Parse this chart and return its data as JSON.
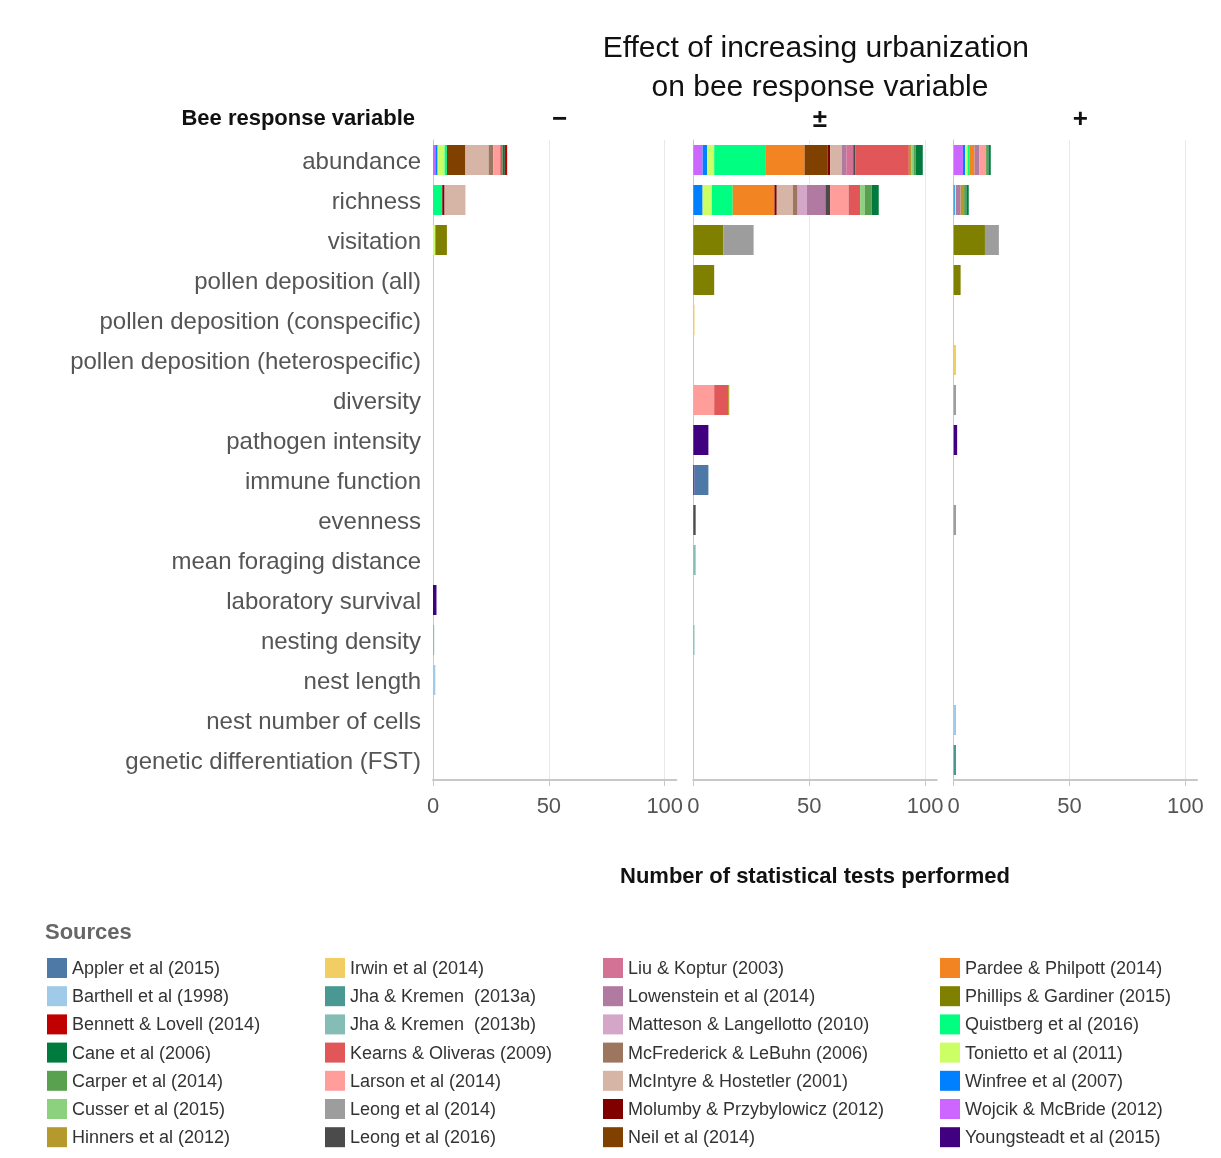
{
  "chart_data": [
    {
      "type": "bar",
      "orientation": "horizontal",
      "stacked": true,
      "subtitle": "−",
      "ylabel": "Bee response variable",
      "legend_title": "Sources",
      "legend": "bottom",
      "grid": "x",
      "categories": [
        "abundance",
        "richness",
        "visitation",
        "pollen deposition (all)",
        "pollen deposition (conspecific)",
        "pollen deposition (heterospecific)",
        "diversity",
        "pathogen intensity",
        "immune function",
        "evenness",
        "mean foraging distance",
        "laboratory survival",
        "nesting density",
        "nest length",
        "nest number of cells",
        "genetic differentiation (FST)"
      ],
      "xlim": [
        0,
        105
      ],
      "xticks": [
        0,
        50,
        100
      ],
      "series": [
        {
          "name": "Youngsteadt et al (2015)",
          "color": "#400080",
          "values": [
            null,
            null,
            null,
            null,
            null,
            null,
            null,
            null,
            null,
            null,
            null,
            1.5,
            null,
            null,
            null,
            null
          ]
        },
        {
          "name": "Wojcik & McBride (2012)",
          "color": "#cc66ff",
          "values": [
            1,
            null,
            null,
            null,
            null,
            null,
            null,
            null,
            null,
            null,
            null,
            null,
            null,
            null,
            null,
            null
          ]
        },
        {
          "name": "Winfree et al (2007)",
          "color": "#0080ff",
          "values": [
            1,
            null,
            null,
            null,
            null,
            null,
            null,
            null,
            null,
            null,
            null,
            null,
            null,
            null,
            null,
            null
          ]
        },
        {
          "name": "Tonietto et al (2011)",
          "color": "#ccff66",
          "values": [
            3,
            null,
            1,
            null,
            null,
            null,
            null,
            null,
            null,
            null,
            null,
            null,
            null,
            null,
            null,
            null
          ]
        },
        {
          "name": "Quistberg et al (2016)",
          "color": "#00ff80",
          "values": [
            1,
            4,
            null,
            null,
            null,
            null,
            null,
            null,
            null,
            null,
            null,
            null,
            null,
            null,
            null,
            null
          ]
        },
        {
          "name": "Phillips & Gardiner (2015)",
          "color": "#808000",
          "values": [
            null,
            null,
            5,
            null,
            null,
            null,
            null,
            null,
            null,
            null,
            null,
            null,
            null,
            null,
            null,
            null
          ]
        },
        {
          "name": "Pardee & Philpott (2014)",
          "color": "#f28522",
          "values": [
            null,
            null,
            null,
            null,
            null,
            null,
            null,
            null,
            null,
            null,
            null,
            null,
            null,
            null,
            null,
            null
          ]
        },
        {
          "name": "Neil et al (2014)",
          "color": "#804000",
          "values": [
            8,
            null,
            null,
            null,
            null,
            null,
            null,
            null,
            null,
            null,
            null,
            null,
            null,
            null,
            null,
            null
          ]
        },
        {
          "name": "Molumby & Przybylowicz (2012)",
          "color": "#800000",
          "values": [
            null,
            1,
            null,
            null,
            null,
            null,
            null,
            null,
            null,
            null,
            null,
            null,
            null,
            null,
            null,
            null
          ]
        },
        {
          "name": "McIntyre & Hostetler (2001)",
          "color": "#d7b5a6",
          "values": [
            10,
            9,
            null,
            null,
            null,
            null,
            null,
            null,
            null,
            null,
            null,
            null,
            null,
            null,
            null,
            null
          ]
        },
        {
          "name": "McFrederick & LeBuhn (2006)",
          "color": "#9d7660",
          "values": [
            2,
            null,
            null,
            null,
            null,
            null,
            null,
            null,
            null,
            null,
            null,
            null,
            null,
            null,
            null,
            null
          ]
        },
        {
          "name": "Matteson & Langellotto (2010)",
          "color": "#d4a6c8",
          "values": [
            null,
            null,
            null,
            null,
            null,
            null,
            null,
            null,
            null,
            null,
            null,
            null,
            null,
            null,
            null,
            null
          ]
        },
        {
          "name": "Lowenstein et al (2014)",
          "color": "#b07aa1",
          "values": [
            null,
            null,
            null,
            null,
            null,
            null,
            null,
            null,
            null,
            null,
            null,
            null,
            null,
            null,
            null,
            null
          ]
        },
        {
          "name": "Liu & Koptur (2003)",
          "color": "#d37295",
          "values": [
            null,
            null,
            null,
            null,
            null,
            null,
            null,
            null,
            null,
            null,
            null,
            null,
            null,
            null,
            null,
            null
          ]
        },
        {
          "name": "Leong et al (2016)",
          "color": "#4b4b4b",
          "values": [
            null,
            null,
            null,
            null,
            null,
            null,
            null,
            null,
            null,
            null,
            null,
            null,
            null,
            null,
            null,
            null
          ]
        },
        {
          "name": "Leong et al (2014)",
          "color": "#9d9d9d",
          "values": [
            null,
            null,
            null,
            null,
            null,
            null,
            null,
            null,
            null,
            null,
            null,
            null,
            null,
            null,
            null,
            null
          ]
        },
        {
          "name": "Larson et al (2014)",
          "color": "#ff9d9a",
          "values": [
            3,
            null,
            null,
            null,
            null,
            null,
            null,
            null,
            null,
            null,
            null,
            null,
            null,
            null,
            null,
            null
          ]
        },
        {
          "name": "Kearns & Oliveras (2009)",
          "color": "#e15759",
          "values": [
            1,
            null,
            null,
            null,
            null,
            null,
            null,
            null,
            null,
            null,
            null,
            null,
            null,
            null,
            null,
            null
          ]
        },
        {
          "name": "Jha & Kremen  (2013b)",
          "color": "#86bcb6",
          "values": [
            null,
            null,
            null,
            null,
            null,
            null,
            null,
            null,
            null,
            null,
            null,
            null,
            0.5,
            null,
            null,
            null
          ]
        },
        {
          "name": "Jha & Kremen  (2013a)",
          "color": "#499894",
          "values": [
            null,
            null,
            null,
            null,
            null,
            null,
            null,
            null,
            null,
            null,
            null,
            null,
            null,
            null,
            null,
            null
          ]
        },
        {
          "name": "Irwin et al (2014)",
          "color": "#f1ce63",
          "values": [
            null,
            null,
            null,
            null,
            null,
            null,
            null,
            null,
            null,
            null,
            null,
            null,
            null,
            null,
            null,
            null
          ]
        },
        {
          "name": "Hinners et al (2012)",
          "color": "#b6992d",
          "values": [
            null,
            null,
            null,
            null,
            null,
            null,
            null,
            null,
            null,
            null,
            null,
            null,
            null,
            null,
            null,
            null
          ]
        },
        {
          "name": "Cusser et al (2015)",
          "color": "#8cd17d",
          "values": [
            null,
            null,
            null,
            null,
            null,
            null,
            null,
            null,
            null,
            null,
            null,
            null,
            null,
            null,
            null,
            null
          ]
        },
        {
          "name": "Carper et al (2014)",
          "color": "#59a14f",
          "values": [
            null,
            null,
            null,
            null,
            null,
            null,
            null,
            null,
            null,
            null,
            null,
            null,
            null,
            null,
            null,
            null
          ]
        },
        {
          "name": "Cane et al (2006)",
          "color": "#007a3d",
          "values": [
            1,
            null,
            null,
            null,
            null,
            null,
            null,
            null,
            null,
            null,
            null,
            null,
            null,
            null,
            null,
            null
          ]
        },
        {
          "name": "Bennett & Lovell (2014)",
          "color": "#c00000",
          "values": [
            1,
            null,
            null,
            null,
            null,
            null,
            null,
            null,
            null,
            null,
            null,
            null,
            null,
            null,
            null,
            null
          ]
        },
        {
          "name": "Barthell et al (1998)",
          "color": "#a0cbe8",
          "values": [
            null,
            null,
            null,
            null,
            null,
            null,
            null,
            null,
            null,
            null,
            null,
            null,
            null,
            1,
            null,
            null
          ]
        },
        {
          "name": "Appler et al (2015)",
          "color": "#4e79a7",
          "values": [
            null,
            null,
            null,
            null,
            null,
            null,
            null,
            null,
            null,
            null,
            null,
            null,
            null,
            null,
            null,
            null
          ]
        }
      ]
    },
    {
      "type": "bar",
      "orientation": "horizontal",
      "stacked": true,
      "title": "Effect of increasing urbanization on bee response variable",
      "subtitle": "±",
      "xlabel": "Number of statistical tests performed",
      "grid": "x",
      "tick_labels": "x",
      "xlim": [
        0,
        105
      ],
      "xticks": [
        0,
        50,
        100
      ],
      "series": [
        {
          "color": "#400080",
          "values": [
            null,
            null,
            null,
            null,
            null,
            null,
            null,
            6.5,
            0.5,
            null,
            null,
            null,
            null,
            null,
            null,
            null
          ]
        },
        {
          "color": "#cc66ff",
          "values": [
            4,
            null,
            null,
            null,
            null,
            null,
            null,
            null,
            null,
            null,
            null,
            null,
            null,
            null,
            null,
            null
          ]
        },
        {
          "color": "#0080ff",
          "values": [
            2,
            4,
            null,
            null,
            null,
            null,
            null,
            null,
            null,
            null,
            null,
            null,
            null,
            null,
            null,
            null
          ]
        },
        {
          "color": "#ccff66",
          "values": [
            3,
            4,
            null,
            null,
            null,
            null,
            null,
            null,
            null,
            null,
            null,
            null,
            null,
            null,
            null,
            null
          ]
        },
        {
          "color": "#00ff80",
          "values": [
            22,
            9,
            null,
            null,
            null,
            null,
            null,
            null,
            null,
            null,
            null,
            null,
            null,
            null,
            null,
            null
          ]
        },
        {
          "color": "#808000",
          "values": [
            null,
            null,
            13,
            9,
            null,
            null,
            null,
            null,
            null,
            null,
            null,
            null,
            null,
            null,
            null,
            null
          ]
        },
        {
          "color": "#f28522",
          "values": [
            17,
            18,
            null,
            null,
            null,
            null,
            null,
            null,
            null,
            null,
            null,
            null,
            null,
            null,
            null,
            null
          ]
        },
        {
          "color": "#804000",
          "values": [
            10,
            null,
            null,
            null,
            null,
            null,
            null,
            null,
            null,
            null,
            null,
            null,
            null,
            null,
            null,
            null
          ]
        },
        {
          "color": "#800000",
          "values": [
            1,
            1,
            null,
            null,
            null,
            null,
            null,
            null,
            null,
            null,
            null,
            null,
            null,
            null,
            null,
            null
          ]
        },
        {
          "color": "#d7b5a6",
          "values": [
            5,
            7,
            null,
            null,
            null,
            null,
            null,
            null,
            null,
            null,
            null,
            null,
            null,
            null,
            null,
            null
          ]
        },
        {
          "color": "#9d7660",
          "values": [
            null,
            2,
            null,
            null,
            null,
            null,
            null,
            null,
            null,
            null,
            null,
            null,
            null,
            null,
            null,
            null
          ]
        },
        {
          "color": "#d4a6c8",
          "values": [
            null,
            4,
            null,
            null,
            null,
            null,
            null,
            null,
            null,
            null,
            null,
            null,
            null,
            null,
            null,
            null
          ]
        },
        {
          "color": "#b07aa1",
          "values": [
            2,
            8,
            null,
            null,
            null,
            null,
            null,
            null,
            null,
            null,
            null,
            null,
            null,
            null,
            null,
            null
          ]
        },
        {
          "color": "#d37295",
          "values": [
            3,
            null,
            null,
            null,
            null,
            null,
            null,
            null,
            null,
            null,
            null,
            null,
            null,
            null,
            null,
            null
          ]
        },
        {
          "color": "#4b4b4b",
          "values": [
            1,
            2,
            null,
            null,
            null,
            null,
            null,
            null,
            null,
            1,
            null,
            null,
            null,
            null,
            null,
            null
          ]
        },
        {
          "color": "#9d9d9d",
          "values": [
            null,
            null,
            13,
            null,
            null,
            null,
            null,
            null,
            null,
            null,
            null,
            null,
            null,
            null,
            null,
            null
          ]
        },
        {
          "color": "#ff9d9a",
          "values": [
            null,
            8,
            null,
            null,
            null,
            null,
            9,
            null,
            null,
            null,
            null,
            null,
            null,
            null,
            null,
            null
          ]
        },
        {
          "color": "#e15759",
          "values": [
            23,
            5,
            null,
            null,
            null,
            null,
            6,
            null,
            null,
            null,
            null,
            null,
            null,
            null,
            null,
            null
          ]
        },
        {
          "color": "#86bcb6",
          "values": [
            null,
            null,
            null,
            null,
            null,
            null,
            null,
            null,
            null,
            null,
            1,
            null,
            0.5,
            null,
            null,
            null
          ]
        },
        {
          "color": "#f1ce63",
          "values": [
            null,
            null,
            null,
            null,
            0.5,
            null,
            null,
            null,
            null,
            null,
            null,
            null,
            null,
            null,
            null,
            null
          ]
        },
        {
          "color": "#b6992d",
          "values": [
            1,
            null,
            null,
            null,
            null,
            null,
            0.5,
            null,
            null,
            null,
            null,
            null,
            null,
            null,
            null,
            null
          ]
        },
        {
          "color": "#8cd17d",
          "values": [
            1,
            2,
            null,
            null,
            null,
            null,
            null,
            null,
            null,
            null,
            null,
            null,
            null,
            null,
            null,
            null
          ]
        },
        {
          "color": "#59a14f",
          "values": [
            1,
            3,
            null,
            null,
            null,
            null,
            null,
            null,
            null,
            null,
            null,
            null,
            null,
            null,
            null,
            null
          ]
        },
        {
          "color": "#007a3d",
          "values": [
            3,
            3,
            null,
            null,
            null,
            null,
            null,
            null,
            null,
            null,
            null,
            null,
            null,
            null,
            null,
            null
          ]
        },
        {
          "color": "#4e79a7",
          "values": [
            null,
            null,
            null,
            null,
            null,
            null,
            null,
            null,
            6,
            null,
            null,
            null,
            null,
            null,
            null,
            null
          ]
        }
      ]
    },
    {
      "type": "bar",
      "orientation": "horizontal",
      "stacked": true,
      "subtitle": "+",
      "grid": "x",
      "tick_labels": "x",
      "xlim": [
        0,
        105
      ],
      "xticks": [
        0,
        50,
        100
      ],
      "series": [
        {
          "color": "#400080",
          "values": [
            null,
            null,
            null,
            null,
            null,
            null,
            null,
            1.5,
            null,
            null,
            null,
            null,
            null,
            null,
            null,
            null
          ]
        },
        {
          "color": "#cc66ff",
          "values": [
            4,
            null,
            null,
            null,
            null,
            null,
            null,
            null,
            null,
            null,
            null,
            null,
            null,
            null,
            null,
            null
          ]
        },
        {
          "color": "#0080ff",
          "values": [
            1,
            0.5,
            null,
            null,
            null,
            null,
            null,
            null,
            null,
            null,
            null,
            null,
            null,
            null,
            null,
            null
          ]
        },
        {
          "color": "#ccff66",
          "values": [
            1,
            0.5,
            null,
            null,
            null,
            null,
            null,
            null,
            null,
            null,
            null,
            null,
            null,
            null,
            null,
            null
          ]
        },
        {
          "color": "#00ff80",
          "values": [
            1,
            null,
            null,
            null,
            null,
            null,
            null,
            null,
            null,
            null,
            null,
            null,
            null,
            null,
            null,
            null
          ]
        },
        {
          "color": "#808000",
          "values": [
            null,
            null,
            13.5,
            3,
            null,
            null,
            null,
            null,
            null,
            null,
            null,
            null,
            null,
            null,
            null,
            null
          ]
        },
        {
          "color": "#f28522",
          "values": [
            2,
            null,
            null,
            null,
            null,
            null,
            null,
            null,
            null,
            null,
            null,
            null,
            null,
            null,
            null,
            null
          ]
        },
        {
          "color": "#b07aa1",
          "values": [
            2,
            2,
            null,
            null,
            null,
            null,
            null,
            null,
            null,
            null,
            null,
            null,
            null,
            null,
            null,
            null
          ]
        },
        {
          "color": "#9d9d9d",
          "values": [
            null,
            null,
            6,
            null,
            null,
            null,
            1,
            null,
            null,
            1,
            null,
            null,
            null,
            null,
            null,
            null
          ]
        },
        {
          "color": "#ff9d9a",
          "values": [
            3,
            null,
            null,
            null,
            null,
            null,
            null,
            null,
            null,
            null,
            null,
            null,
            null,
            null,
            null,
            null
          ]
        },
        {
          "color": "#499894",
          "values": [
            null,
            null,
            null,
            null,
            null,
            null,
            null,
            null,
            null,
            null,
            null,
            null,
            null,
            null,
            null,
            1
          ]
        },
        {
          "color": "#f1ce63",
          "values": [
            null,
            null,
            null,
            null,
            null,
            1,
            null,
            null,
            null,
            null,
            null,
            null,
            null,
            null,
            null,
            null
          ]
        },
        {
          "color": "#b6992d",
          "values": [
            null,
            1.5,
            null,
            null,
            null,
            null,
            null,
            null,
            null,
            null,
            null,
            null,
            null,
            null,
            null,
            null
          ]
        },
        {
          "color": "#59a14f",
          "values": [
            1,
            1,
            null,
            null,
            null,
            null,
            null,
            null,
            null,
            null,
            null,
            null,
            null,
            null,
            null,
            null
          ]
        },
        {
          "color": "#007a3d",
          "values": [
            1,
            1,
            null,
            null,
            null,
            null,
            null,
            null,
            null,
            null,
            null,
            null,
            null,
            null,
            null,
            null
          ]
        },
        {
          "color": "#a0cbe8",
          "values": [
            null,
            null,
            null,
            null,
            null,
            null,
            null,
            null,
            null,
            null,
            null,
            null,
            null,
            null,
            1,
            null
          ]
        }
      ]
    }
  ]
}
